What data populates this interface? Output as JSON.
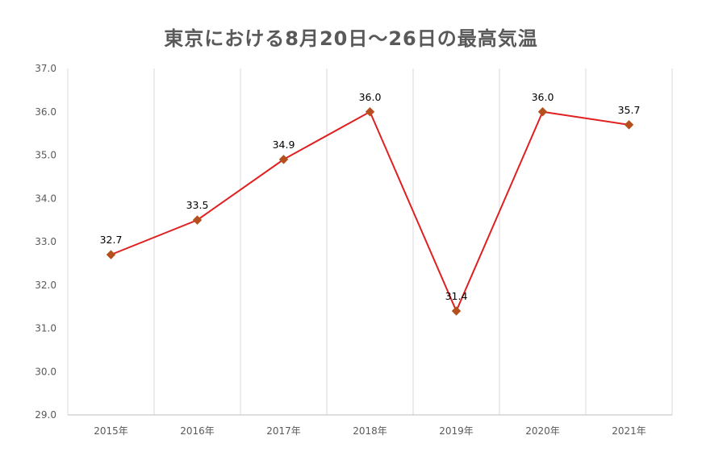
{
  "chart_data": {
    "type": "line",
    "title": "東京における8月20日～26日の最高気温",
    "xlabel": "",
    "ylabel": "",
    "categories": [
      "2015年",
      "2016年",
      "2017年",
      "2018年",
      "2019年",
      "2020年",
      "2021年"
    ],
    "values": [
      32.7,
      33.5,
      34.9,
      36.0,
      31.4,
      36.0,
      35.7
    ],
    "data_labels": [
      "32.7",
      "33.5",
      "34.9",
      "36.0",
      "31.4",
      "36.0",
      "35.7"
    ],
    "ylim": [
      29.0,
      37.0
    ],
    "yticks": [
      "29.0",
      "30.0",
      "31.0",
      "32.0",
      "33.0",
      "34.0",
      "35.0",
      "36.0",
      "37.0"
    ],
    "grid": "vertical",
    "line_color": "#e02020",
    "marker_color": "#b5501e",
    "marker_shape": "diamond"
  }
}
